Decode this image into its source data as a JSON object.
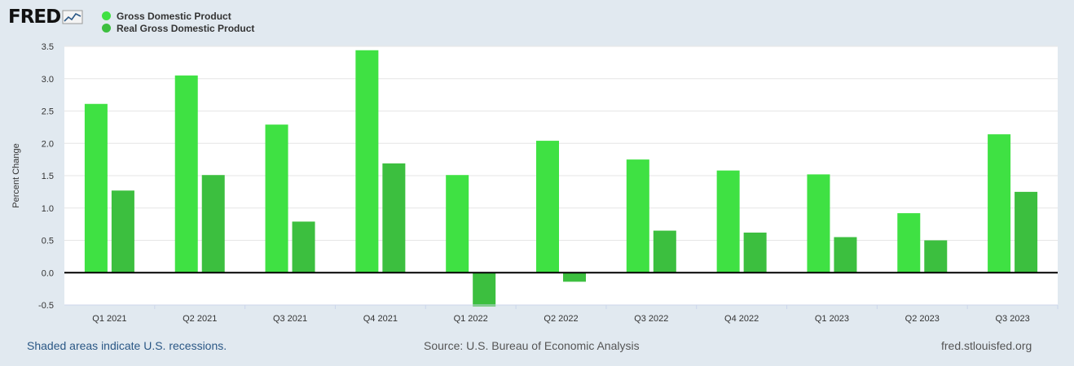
{
  "header": {
    "logo_text": "FRED",
    "logo_icon": "line-chart-icon"
  },
  "legend": [
    {
      "label": "Gross Domestic Product",
      "color": "#3fe143"
    },
    {
      "label": "Real Gross Domestic Product",
      "color": "#3cbf3f"
    }
  ],
  "footer": {
    "recession_note": "Shaded areas indicate U.S. recessions.",
    "source": "Source: U.S. Bureau of Economic Analysis",
    "site": "fred.stlouisfed.org"
  },
  "chart_data": {
    "type": "bar",
    "categories": [
      "Q1 2021",
      "Q2 2021",
      "Q3 2021",
      "Q4 2021",
      "Q1 2022",
      "Q2 2022",
      "Q3 2022",
      "Q4 2022",
      "Q1 2023",
      "Q2 2023",
      "Q3 2023"
    ],
    "series": [
      {
        "name": "Gross Domestic Product",
        "color": "#3fe143",
        "values": [
          2.61,
          3.05,
          2.29,
          3.44,
          1.51,
          2.04,
          1.75,
          1.58,
          1.52,
          0.92,
          2.14
        ]
      },
      {
        "name": "Real Gross Domestic Product",
        "color": "#3cbf3f",
        "values": [
          1.27,
          1.51,
          0.79,
          1.69,
          -0.52,
          -0.14,
          0.65,
          0.62,
          0.55,
          0.5,
          1.25
        ]
      }
    ],
    "ylabel": "Percent Change",
    "ylim": [
      -0.5,
      3.5
    ],
    "yticks": [
      "-0.5",
      "0.0",
      "0.5",
      "1.0",
      "1.5",
      "2.0",
      "2.5",
      "3.0",
      "3.5"
    ],
    "grid": true,
    "legend_position": "top-left"
  }
}
